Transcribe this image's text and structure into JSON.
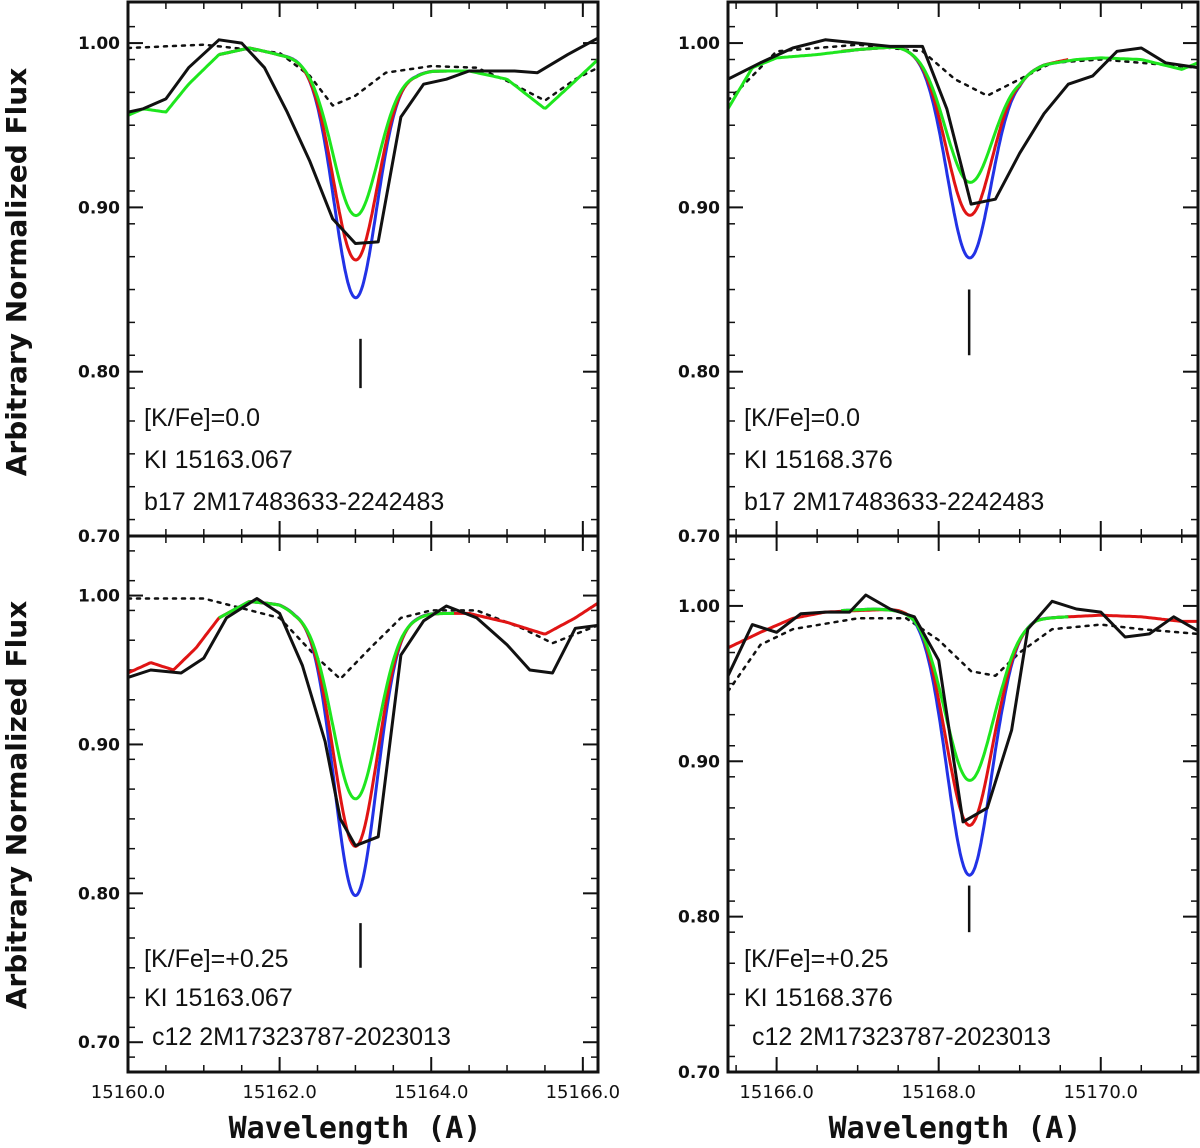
{
  "chart_data": [
    {
      "type": "line",
      "panel": "top-left",
      "xlim": [
        15160.0,
        15166.2
      ],
      "ylim": [
        0.7,
        1.025
      ],
      "yticks": [
        0.7,
        0.8,
        0.9,
        1.0
      ],
      "ytick_labels": [
        "0.70",
        "0.80",
        "0.90",
        "1.00"
      ],
      "xticks": [
        15160.0,
        15162.0,
        15164.0,
        15166.0
      ],
      "xtick_labels": [],
      "line_marker": {
        "x": 15163.067,
        "y_range": [
          0.79,
          0.82
        ]
      },
      "annotations": [
        "[K/Fe]=0.0",
        "KI 15163.067",
        "b17 2M17483633-2242483"
      ],
      "series": [
        {
          "name": "dotted",
          "color": "#111111",
          "style": "dotted",
          "x": [
            15160.0,
            15161.0,
            15162.0,
            15162.4,
            15162.7,
            15163.0,
            15163.4,
            15164.0,
            15164.6,
            15165.0,
            15165.5,
            15165.9,
            15166.2
          ],
          "y": [
            0.997,
            0.999,
            0.994,
            0.98,
            0.962,
            0.968,
            0.982,
            0.986,
            0.985,
            0.977,
            0.965,
            0.978,
            0.985
          ]
        },
        {
          "name": "blue",
          "color": "#2232e6",
          "style": "gaussian",
          "cont_x": [
            15160.0,
            15160.2,
            15160.5,
            15160.8,
            15161.2,
            15161.6,
            15162.0,
            15162.2,
            15163.8,
            15164.0,
            15164.5,
            15165.0,
            15165.5,
            15165.9,
            15166.2
          ],
          "cont_y": [
            0.956,
            0.96,
            0.958,
            0.975,
            0.993,
            0.997,
            0.993,
            0.992,
            0.982,
            0.983,
            0.983,
            0.978,
            0.96,
            0.977,
            0.99
          ],
          "center": 15163.0,
          "depth": 0.142,
          "sigma": 0.28,
          "xmin": 15161.2,
          "xmax": 15164.4
        },
        {
          "name": "red",
          "color": "#e01414",
          "style": "gaussian",
          "cont_x": [
            15161.2,
            15161.6,
            15162.0,
            15162.2,
            15163.8,
            15164.0,
            15164.4
          ],
          "cont_y": [
            0.993,
            0.997,
            0.993,
            0.992,
            0.982,
            0.983,
            0.983
          ],
          "center": 15163.0,
          "depth": 0.119,
          "sigma": 0.29,
          "xmin": 15161.2,
          "xmax": 15164.4
        },
        {
          "name": "green",
          "color": "#1ee61e",
          "style": "gaussian",
          "cont_x": [
            15160.0,
            15160.2,
            15160.5,
            15160.8,
            15161.2,
            15161.6,
            15162.0,
            15162.2,
            15163.8,
            15164.0,
            15164.5,
            15165.0,
            15165.5,
            15165.9,
            15166.2
          ],
          "cont_y": [
            0.956,
            0.96,
            0.958,
            0.975,
            0.993,
            0.997,
            0.993,
            0.992,
            0.982,
            0.983,
            0.983,
            0.978,
            0.96,
            0.977,
            0.99
          ],
          "center": 15163.0,
          "depth": 0.092,
          "sigma": 0.3,
          "xmin": 15160.0,
          "xmax": 15166.2
        },
        {
          "name": "observed",
          "color": "#111111",
          "style": "solid",
          "x": [
            15160.0,
            15160.2,
            15160.5,
            15160.8,
            15161.2,
            15161.5,
            15161.8,
            15162.1,
            15162.4,
            15162.7,
            15163.0,
            15163.3,
            15163.6,
            15163.9,
            15164.2,
            15164.5,
            15164.8,
            15165.1,
            15165.4,
            15165.8,
            15166.2
          ],
          "y": [
            0.958,
            0.96,
            0.966,
            0.985,
            1.002,
            1.0,
            0.985,
            0.958,
            0.928,
            0.893,
            0.878,
            0.879,
            0.955,
            0.975,
            0.978,
            0.983,
            0.983,
            0.983,
            0.982,
            0.993,
            1.003
          ]
        }
      ]
    },
    {
      "type": "line",
      "panel": "top-right",
      "xlim": [
        15165.4,
        15171.2
      ],
      "ylim": [
        0.7,
        1.025
      ],
      "yticks": [
        0.7,
        0.8,
        0.9,
        1.0
      ],
      "ytick_labels": [
        "0.70",
        "0.80",
        "0.90",
        "1.00"
      ],
      "xticks": [
        15166.0,
        15168.0,
        15170.0
      ],
      "xtick_labels": [],
      "line_marker": {
        "x": 15168.376,
        "y_range": [
          0.81,
          0.85
        ]
      },
      "annotations": [
        "[K/Fe]=0.0",
        "KI 15168.376",
        "b17 2M17483633-2242483"
      ],
      "series": [
        {
          "name": "dotted",
          "color": "#111111",
          "style": "dotted",
          "x": [
            15165.4,
            15166.0,
            15167.0,
            15167.8,
            15168.2,
            15168.6,
            15169.0,
            15169.4,
            15170.0,
            15170.5,
            15171.2
          ],
          "y": [
            0.965,
            0.995,
            0.999,
            0.995,
            0.978,
            0.968,
            0.978,
            0.988,
            0.99,
            0.988,
            0.985
          ]
        },
        {
          "name": "blue",
          "color": "#2232e6",
          "style": "gaussian",
          "cont_x": [
            15165.4,
            15165.7,
            15166.0,
            15166.5,
            15167.0,
            15167.5,
            15167.8,
            15169.0,
            15169.3,
            15169.7,
            15170.0,
            15170.5,
            15171.0,
            15171.2
          ],
          "cont_y": [
            0.96,
            0.985,
            0.991,
            0.993,
            0.996,
            0.998,
            0.996,
            0.982,
            0.987,
            0.99,
            0.991,
            0.99,
            0.984,
            0.988
          ],
          "center": 15168.376,
          "depth": 0.12,
          "sigma": 0.27,
          "xmin": 15166.8,
          "xmax": 15169.6
        },
        {
          "name": "red",
          "color": "#e01414",
          "style": "gaussian",
          "cont_x": [
            15166.8,
            15167.0,
            15167.5,
            15167.8,
            15169.0,
            15169.3,
            15169.6
          ],
          "cont_y": [
            0.995,
            0.996,
            0.998,
            0.996,
            0.982,
            0.987,
            0.99
          ],
          "center": 15168.376,
          "depth": 0.094,
          "sigma": 0.28,
          "xmin": 15166.8,
          "xmax": 15169.6
        },
        {
          "name": "green",
          "color": "#1ee61e",
          "style": "gaussian",
          "cont_x": [
            15165.4,
            15165.7,
            15166.0,
            15166.5,
            15167.0,
            15167.5,
            15167.8,
            15169.0,
            15169.3,
            15169.7,
            15170.0,
            15170.5,
            15171.0,
            15171.2
          ],
          "cont_y": [
            0.96,
            0.985,
            0.991,
            0.993,
            0.996,
            0.998,
            0.996,
            0.982,
            0.987,
            0.99,
            0.991,
            0.99,
            0.984,
            0.988
          ],
          "center": 15168.376,
          "depth": 0.074,
          "sigma": 0.29,
          "xmin": 15165.4,
          "xmax": 15171.2
        },
        {
          "name": "observed",
          "color": "#111111",
          "style": "solid",
          "x": [
            15165.4,
            15165.8,
            15166.2,
            15166.6,
            15167.0,
            15167.4,
            15167.8,
            15168.1,
            15168.4,
            15168.7,
            15169.0,
            15169.3,
            15169.6,
            15169.9,
            15170.2,
            15170.5,
            15170.8,
            15171.2
          ],
          "y": [
            0.978,
            0.988,
            0.997,
            1.002,
            1.0,
            0.998,
            0.998,
            0.96,
            0.902,
            0.905,
            0.933,
            0.957,
            0.975,
            0.98,
            0.995,
            0.997,
            0.988,
            0.985
          ]
        }
      ]
    },
    {
      "type": "line",
      "panel": "bottom-left",
      "xlim": [
        15160.0,
        15166.2
      ],
      "ylim": [
        0.68,
        1.04
      ],
      "yticks": [
        0.7,
        0.8,
        0.9,
        1.0
      ],
      "ytick_labels": [
        "0.70",
        "0.80",
        "0.90",
        "1.00"
      ],
      "xticks": [
        15160.0,
        15162.0,
        15164.0,
        15166.0
      ],
      "xtick_labels": [
        "15160.0",
        "15162.0",
        "15164.0",
        "15166.0"
      ],
      "line_marker": {
        "x": 15163.067,
        "y_range": [
          0.75,
          0.78
        ]
      },
      "annotations": [
        "[K/Fe]=+0.25",
        "KI 15163.067",
        "c12 2M17323787-2023013"
      ],
      "series": [
        {
          "name": "dotted",
          "color": "#111111",
          "style": "dotted",
          "x": [
            15160.0,
            15161.0,
            15162.0,
            15162.5,
            15162.8,
            15163.2,
            15163.6,
            15164.0,
            15164.6,
            15165.2,
            15165.6,
            15166.2
          ],
          "y": [
            0.998,
            0.998,
            0.985,
            0.958,
            0.944,
            0.965,
            0.985,
            0.99,
            0.99,
            0.978,
            0.968,
            0.98
          ]
        },
        {
          "name": "blue",
          "color": "#2232e6",
          "style": "gaussian",
          "cont_x": [
            15161.2,
            15161.6,
            15162.0,
            15162.2,
            15163.8,
            15164.0,
            15164.3
          ],
          "cont_y": [
            0.985,
            0.996,
            0.994,
            0.99,
            0.987,
            0.988,
            0.988
          ],
          "center": 15163.0,
          "depth": 0.19,
          "sigma": 0.28,
          "xmin": 15161.2,
          "xmax": 15164.3
        },
        {
          "name": "red",
          "color": "#e01414",
          "style": "gaussian",
          "cont_x": [
            15160.0,
            15160.3,
            15160.6,
            15160.9,
            15161.2,
            15161.6,
            15162.0,
            15162.2,
            15163.8,
            15164.0,
            15164.5,
            15165.0,
            15165.5,
            15165.9,
            15166.2
          ],
          "cont_y": [
            0.948,
            0.955,
            0.95,
            0.965,
            0.985,
            0.996,
            0.994,
            0.99,
            0.987,
            0.988,
            0.988,
            0.982,
            0.974,
            0.985,
            0.995
          ],
          "center": 15163.0,
          "depth": 0.157,
          "sigma": 0.29,
          "xmin": 15160.0,
          "xmax": 15166.2
        },
        {
          "name": "green",
          "color": "#1ee61e",
          "style": "gaussian",
          "cont_x": [
            15161.2,
            15161.6,
            15162.0,
            15162.2,
            15163.8,
            15164.0,
            15164.3
          ],
          "cont_y": [
            0.985,
            0.996,
            0.994,
            0.99,
            0.987,
            0.988,
            0.988
          ],
          "center": 15163.0,
          "depth": 0.125,
          "sigma": 0.3,
          "xmin": 15161.2,
          "xmax": 15164.3
        },
        {
          "name": "observed",
          "color": "#111111",
          "style": "solid",
          "x": [
            15160.0,
            15160.3,
            15160.7,
            15161.0,
            15161.3,
            15161.7,
            15162.0,
            15162.3,
            15162.6,
            15162.8,
            15163.0,
            15163.3,
            15163.6,
            15163.9,
            15164.2,
            15164.6,
            15165.0,
            15165.3,
            15165.6,
            15165.9,
            15166.2
          ],
          "y": [
            0.945,
            0.95,
            0.948,
            0.958,
            0.985,
            0.998,
            0.988,
            0.953,
            0.902,
            0.85,
            0.832,
            0.838,
            0.96,
            0.983,
            0.993,
            0.985,
            0.967,
            0.95,
            0.948,
            0.978,
            0.98
          ]
        }
      ]
    },
    {
      "type": "line",
      "panel": "bottom-right",
      "xlim": [
        15165.4,
        15171.2
      ],
      "ylim": [
        0.7,
        1.045
      ],
      "yticks": [
        0.7,
        0.8,
        0.9,
        1.0
      ],
      "ytick_labels": [
        "0.70",
        "0.80",
        "0.90",
        "1.00"
      ],
      "xticks": [
        15166.0,
        15168.0,
        15170.0
      ],
      "xtick_labels": [
        "15166.0",
        "15168.0",
        "15170.0"
      ],
      "line_marker": {
        "x": 15168.376,
        "y_range": [
          0.79,
          0.82
        ]
      },
      "annotations": [
        "[K/Fe]=+0.25",
        "KI 15168.376",
        "c12 2M17323787-2023013"
      ],
      "series": [
        {
          "name": "dotted",
          "color": "#111111",
          "style": "dotted",
          "x": [
            15165.4,
            15165.8,
            15166.2,
            15167.0,
            15167.6,
            15168.0,
            15168.4,
            15168.7,
            15169.0,
            15169.4,
            15170.0,
            15170.5,
            15171.2
          ],
          "y": [
            0.945,
            0.975,
            0.985,
            0.992,
            0.992,
            0.978,
            0.958,
            0.955,
            0.97,
            0.985,
            0.988,
            0.985,
            0.982
          ]
        },
        {
          "name": "blue",
          "color": "#2232e6",
          "style": "gaussian",
          "cont_x": [
            15166.8,
            15167.2,
            15167.7,
            15168.0,
            15168.8,
            15169.2,
            15169.6
          ],
          "cont_y": [
            0.997,
            0.998,
            0.997,
            0.992,
            0.985,
            0.992,
            0.993
          ],
          "center": 15168.376,
          "depth": 0.162,
          "sigma": 0.27,
          "xmin": 15166.8,
          "xmax": 15169.6
        },
        {
          "name": "red",
          "color": "#e01414",
          "style": "gaussian",
          "cont_x": [
            15165.4,
            15165.8,
            15166.2,
            15166.6,
            15167.0,
            15167.5,
            15167.8,
            15168.0,
            15168.8,
            15169.2,
            15169.6,
            15170.0,
            15170.5,
            15171.0,
            15171.2
          ],
          "cont_y": [
            0.973,
            0.983,
            0.992,
            0.996,
            0.997,
            0.998,
            0.997,
            0.992,
            0.985,
            0.992,
            0.993,
            0.994,
            0.993,
            0.99,
            0.99
          ],
          "center": 15168.376,
          "depth": 0.13,
          "sigma": 0.28,
          "xmin": 15165.4,
          "xmax": 15171.2
        },
        {
          "name": "green",
          "color": "#1ee61e",
          "style": "gaussian",
          "cont_x": [
            15166.8,
            15167.2,
            15167.7,
            15168.0,
            15168.8,
            15169.2,
            15169.6
          ],
          "cont_y": [
            0.997,
            0.998,
            0.997,
            0.992,
            0.985,
            0.992,
            0.993
          ],
          "center": 15168.376,
          "depth": 0.101,
          "sigma": 0.29,
          "xmin": 15166.8,
          "xmax": 15169.6
        },
        {
          "name": "observed",
          "color": "#111111",
          "style": "solid",
          "x": [
            15165.4,
            15165.7,
            15166.0,
            15166.3,
            15166.6,
            15166.9,
            15167.1,
            15167.4,
            15167.7,
            15168.0,
            15168.3,
            15168.6,
            15168.9,
            15169.1,
            15169.4,
            15169.7,
            15170.0,
            15170.3,
            15170.6,
            15170.9,
            15171.2
          ],
          "y": [
            0.955,
            0.988,
            0.983,
            0.995,
            0.996,
            0.996,
            1.007,
            0.998,
            0.993,
            0.965,
            0.861,
            0.87,
            0.92,
            0.985,
            1.003,
            0.998,
            0.996,
            0.98,
            0.982,
            0.993,
            0.984
          ]
        }
      ]
    }
  ],
  "axes": {
    "ylabel": "Arbitrary Normalized Flux",
    "xlabel": "Wavelength (A)"
  }
}
